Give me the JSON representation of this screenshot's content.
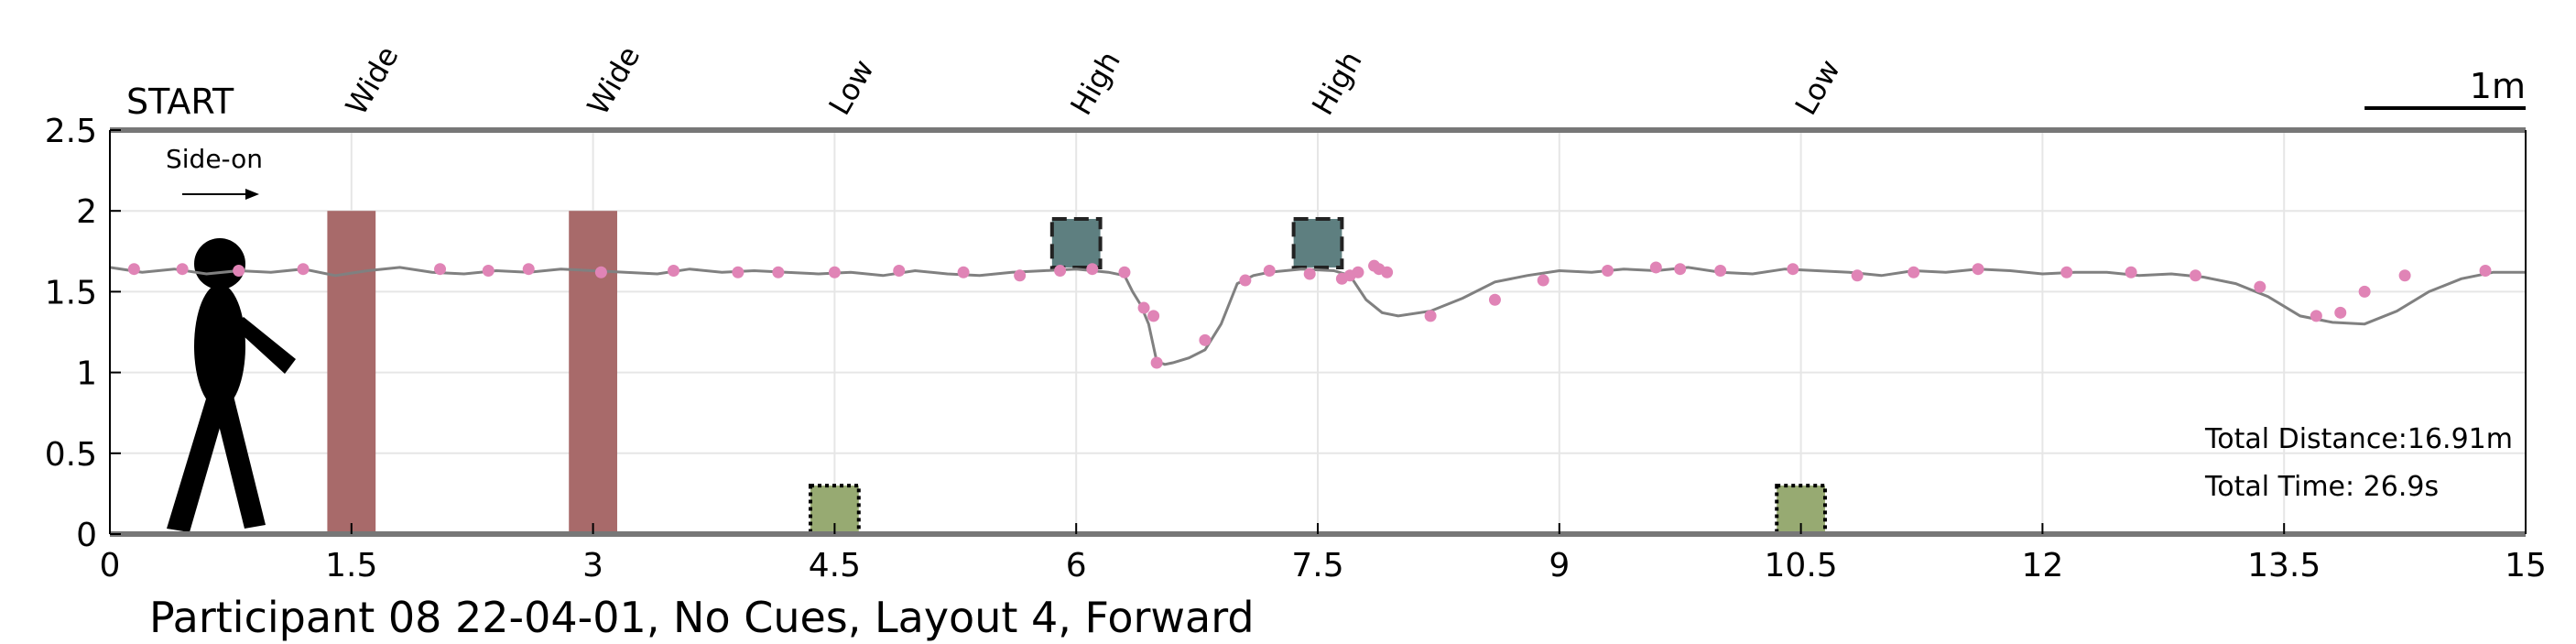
{
  "chart_data": {
    "type": "line",
    "title": "Participant 08 22-04-01, No Cues, Layout 4, Forward",
    "xlabel": "",
    "ylabel": "",
    "xlim": [
      0,
      15
    ],
    "ylim": [
      0,
      2.5
    ],
    "x_ticks": [
      0,
      1.5,
      3,
      4.5,
      6,
      7.5,
      9,
      10.5,
      12,
      13.5,
      15
    ],
    "x_tick_labels": [
      "0",
      "1.5",
      "3",
      "4.5",
      "6",
      "7.5",
      "9",
      "10.5",
      "12",
      "13.5",
      "15"
    ],
    "y_ticks": [
      0,
      0.5,
      1,
      1.5,
      2,
      2.5
    ],
    "y_tick_labels": [
      "0",
      "0.5",
      "1",
      "1.5",
      "2",
      "2.5"
    ],
    "grid": true,
    "start_label": "START",
    "direction_label": "Side-on",
    "scale_label": "1m",
    "scale_bar_length": 1,
    "total_distance": "Total Distance:16.91m",
    "total_time": "Total Time: 26.9s",
    "obstacles": [
      {
        "label": "Wide",
        "type": "wide",
        "x": 1.5,
        "half_width": 0.15,
        "y0": 0,
        "y1": 2,
        "color": "#a86a6a"
      },
      {
        "label": "Wide",
        "type": "wide",
        "x": 3.0,
        "half_width": 0.15,
        "y0": 0,
        "y1": 2,
        "color": "#a86a6a"
      },
      {
        "label": "Low",
        "type": "low",
        "x": 4.5,
        "half_width": 0.15,
        "y0": 0,
        "y1": 0.3,
        "color": "#97aa72"
      },
      {
        "label": "High",
        "type": "high",
        "x": 6.0,
        "half_width": 0.15,
        "y0": 1.65,
        "y1": 1.95,
        "color": "#5e7f80"
      },
      {
        "label": "High",
        "type": "high",
        "x": 7.5,
        "half_width": 0.15,
        "y0": 1.65,
        "y1": 1.95,
        "color": "#5e7f80"
      },
      {
        "label": "Low",
        "type": "low",
        "x": 10.5,
        "half_width": 0.15,
        "y0": 0,
        "y1": 0.3,
        "color": "#97aa72"
      }
    ],
    "series": [
      {
        "color": "#808080",
        "x": [
          0,
          0.2,
          0.4,
          0.6,
          0.8,
          1.0,
          1.2,
          1.4,
          1.6,
          1.8,
          2.0,
          2.2,
          2.4,
          2.6,
          2.8,
          3.0,
          3.2,
          3.4,
          3.6,
          3.8,
          4.0,
          4.2,
          4.4,
          4.6,
          4.8,
          5.0,
          5.2,
          5.4,
          5.6,
          5.8,
          6.0,
          6.2,
          6.3,
          6.35,
          6.4,
          6.45,
          6.5,
          6.55,
          6.6,
          6.7,
          6.8,
          6.9,
          7.0,
          7.1,
          7.2,
          7.4,
          7.6,
          7.7,
          7.8,
          7.9,
          8.0,
          8.2,
          8.4,
          8.6,
          8.8,
          9.0,
          9.2,
          9.4,
          9.6,
          9.8,
          10.0,
          10.2,
          10.4,
          10.6,
          10.8,
          11.0,
          11.2,
          11.4,
          11.6,
          11.8,
          12.0,
          12.2,
          12.4,
          12.6,
          12.8,
          13.0,
          13.2,
          13.4,
          13.6,
          13.8,
          14.0,
          14.2,
          14.4,
          14.6,
          14.8,
          15.0
        ],
        "y": [
          1.65,
          1.62,
          1.64,
          1.61,
          1.63,
          1.62,
          1.64,
          1.6,
          1.63,
          1.65,
          1.62,
          1.61,
          1.63,
          1.62,
          1.64,
          1.63,
          1.62,
          1.61,
          1.64,
          1.62,
          1.63,
          1.62,
          1.61,
          1.62,
          1.6,
          1.63,
          1.61,
          1.6,
          1.62,
          1.63,
          1.64,
          1.62,
          1.6,
          1.5,
          1.42,
          1.3,
          1.07,
          1.05,
          1.06,
          1.09,
          1.14,
          1.3,
          1.55,
          1.6,
          1.62,
          1.64,
          1.63,
          1.6,
          1.45,
          1.37,
          1.35,
          1.38,
          1.46,
          1.56,
          1.6,
          1.63,
          1.62,
          1.64,
          1.63,
          1.65,
          1.62,
          1.61,
          1.64,
          1.63,
          1.62,
          1.6,
          1.63,
          1.62,
          1.64,
          1.63,
          1.61,
          1.62,
          1.62,
          1.6,
          1.61,
          1.59,
          1.55,
          1.47,
          1.35,
          1.31,
          1.3,
          1.38,
          1.5,
          1.58,
          1.62,
          1.62
        ]
      },
      {
        "color": "#e084b6",
        "x": [
          0.15,
          0.45,
          0.8,
          1.2,
          2.05,
          2.35,
          2.6,
          3.05,
          3.5,
          3.9,
          4.15,
          4.5,
          4.9,
          5.3,
          5.65,
          5.9,
          6.1,
          6.3,
          6.42,
          6.48,
          6.5,
          6.8,
          7.05,
          7.2,
          7.45,
          7.65,
          7.7,
          7.75,
          7.85,
          7.88,
          7.93,
          8.2,
          8.6,
          8.9,
          9.3,
          9.6,
          9.75,
          10.0,
          10.45,
          10.85,
          11.2,
          11.6,
          12.15,
          12.55,
          12.95,
          13.35,
          13.7,
          13.85,
          14.0,
          14.25,
          14.75
        ],
        "y": [
          1.64,
          1.64,
          1.63,
          1.64,
          1.64,
          1.63,
          1.64,
          1.62,
          1.63,
          1.62,
          1.62,
          1.62,
          1.63,
          1.62,
          1.6,
          1.63,
          1.64,
          1.62,
          1.4,
          1.35,
          1.06,
          1.2,
          1.57,
          1.63,
          1.61,
          1.58,
          1.6,
          1.62,
          1.66,
          1.64,
          1.62,
          1.35,
          1.45,
          1.57,
          1.63,
          1.65,
          1.64,
          1.63,
          1.64,
          1.6,
          1.62,
          1.64,
          1.62,
          1.62,
          1.6,
          1.53,
          1.35,
          1.37,
          1.5,
          1.6,
          1.63
        ]
      }
    ]
  }
}
